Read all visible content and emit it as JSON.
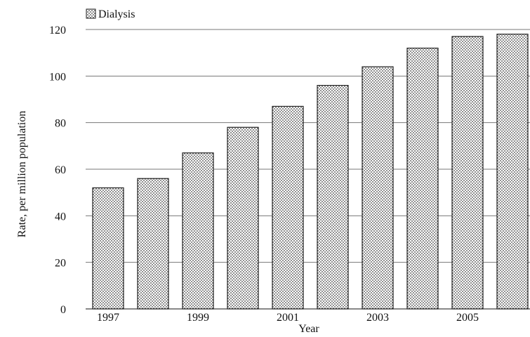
{
  "chart_data": {
    "type": "bar",
    "title": "",
    "xlabel": "Year",
    "ylabel": "Rate, per million population",
    "categories": [
      "1997",
      "1998",
      "1999",
      "2000",
      "2001",
      "2002",
      "2003",
      "2004",
      "2005",
      "2006"
    ],
    "x_tick_labels": [
      "1997",
      "",
      "1999",
      "",
      "2001",
      "",
      "2003",
      "",
      "2005",
      ""
    ],
    "series": [
      {
        "name": "Dialysis",
        "values": [
          52,
          56,
          67,
          78,
          87,
          96,
          104,
          112,
          117,
          118
        ]
      }
    ],
    "ylim": [
      0,
      120
    ],
    "yticks": [
      0,
      20,
      40,
      60,
      80,
      100,
      120
    ],
    "grid": true,
    "legend_position": "top-left",
    "colors": {
      "bar_fill": "#ffffff",
      "bar_dots": "#444444",
      "bar_stroke": "#222222",
      "grid": "#777777",
      "text": "#111111"
    },
    "pattern": "dotted"
  }
}
